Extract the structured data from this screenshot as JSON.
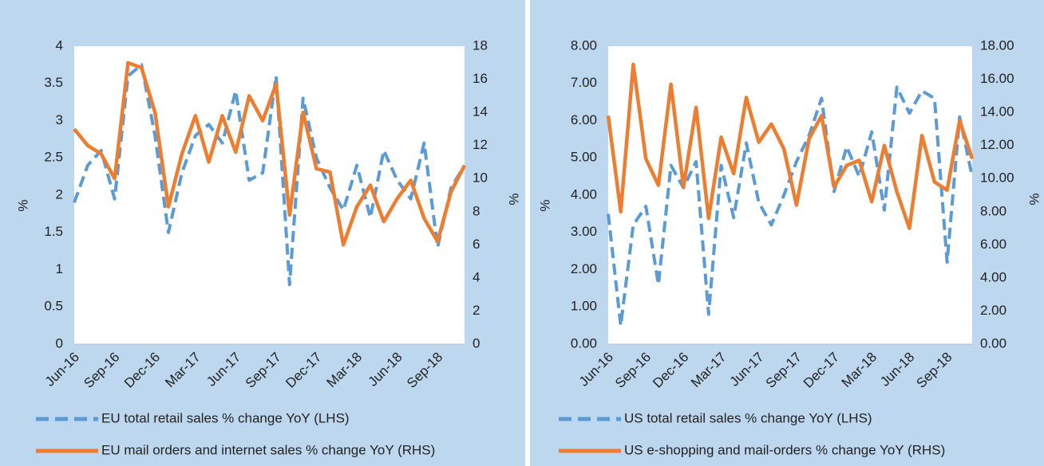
{
  "chart_data": [
    {
      "type": "line",
      "categories": [
        "Jun-16",
        null,
        null,
        "Sep-16",
        null,
        null,
        "Dec-16",
        null,
        null,
        "Mar-17",
        null,
        null,
        "Jun-17",
        null,
        null,
        "Sep-17",
        null,
        null,
        "Dec-17",
        null,
        null,
        "Mar-18",
        null,
        null,
        "Jun-18",
        null,
        null,
        "Sep-18",
        null,
        null
      ],
      "ylabel": "%",
      "y2label": "%",
      "ylim": [
        0,
        4
      ],
      "yticks": [
        0,
        0.5,
        1,
        1.5,
        2,
        2.5,
        3,
        3.5,
        4
      ],
      "y2lim": [
        0,
        18
      ],
      "y2ticks": [
        0,
        2,
        4,
        6,
        8,
        10,
        12,
        14,
        16,
        18
      ],
      "series": [
        {
          "name": "EU total retail sales % change YoY (LHS)",
          "color": "#5b9bd5",
          "line_style": "dashed",
          "values": [
            1.9,
            2.4,
            2.6,
            1.95,
            3.6,
            3.75,
            2.8,
            1.5,
            2.3,
            2.8,
            2.95,
            2.7,
            3.4,
            2.2,
            2.3,
            3.6,
            0.8,
            3.3,
            2.5,
            2.1,
            1.8,
            2.4,
            1.7,
            2.6,
            2.2,
            1.95,
            2.7,
            1.3,
            2.1,
            2.4
          ]
        },
        {
          "name": "EU mail orders and internet sales % change YoY (RHS)",
          "color": "#ed7d31",
          "line_style": "solid",
          "axis": "y2",
          "values": [
            13,
            12,
            11.5,
            10,
            17,
            16.7,
            14,
            8.3,
            11.5,
            13.8,
            11,
            13.8,
            11.6,
            15,
            13.5,
            15.7,
            7.8,
            14,
            10.6,
            10.4,
            6,
            8.3,
            9.6,
            7.4,
            8.8,
            9.9,
            7.6,
            6.2,
            9.2,
            10.8
          ]
        }
      ]
    },
    {
      "type": "line",
      "categories": [
        "Jun-16",
        null,
        null,
        "Sep-16",
        null,
        null,
        "Dec-16",
        null,
        null,
        "Mar-17",
        null,
        null,
        "Jun-17",
        null,
        null,
        "Sep-17",
        null,
        null,
        "Dec-17",
        null,
        null,
        "Mar-18",
        null,
        null,
        "Jun-18",
        null,
        null,
        "Sep-18",
        null,
        null
      ],
      "ylabel": "%",
      "y2label": "%",
      "ylim": [
        0,
        8
      ],
      "yticks": [
        {
          "value": 0,
          "label": "0.00"
        },
        {
          "value": 1,
          "label": "1.00"
        },
        {
          "value": 2,
          "label": "2.00"
        },
        {
          "value": 3,
          "label": "3.00"
        },
        {
          "value": 4,
          "label": "4.00"
        },
        {
          "value": 5,
          "label": "5.00"
        },
        {
          "value": 6,
          "label": "6.00"
        },
        {
          "value": 7,
          "label": "7.00"
        },
        {
          "value": 8,
          "label": "8.00"
        }
      ],
      "y2lim": [
        0,
        18
      ],
      "y2ticks": [
        {
          "value": 0,
          "label": "0.00"
        },
        {
          "value": 2,
          "label": "2.00"
        },
        {
          "value": 4,
          "label": "4.00"
        },
        {
          "value": 6,
          "label": "6.00"
        },
        {
          "value": 8,
          "label": "8.00"
        },
        {
          "value": 10,
          "label": "10.00"
        },
        {
          "value": 12,
          "label": "12.00"
        },
        {
          "value": 14,
          "label": "14.00"
        },
        {
          "value": 16,
          "label": "16.00"
        },
        {
          "value": 18,
          "label": "18.00"
        }
      ],
      "series": [
        {
          "name": "US total retail sales % change YoY (LHS)",
          "color": "#5b9bd5",
          "line_style": "dashed",
          "values": [
            3.5,
            0.5,
            3.2,
            3.7,
            1.6,
            4.8,
            4.2,
            4.9,
            0.8,
            4.8,
            3.4,
            5.4,
            3.8,
            3.2,
            4.0,
            4.9,
            5.6,
            6.6,
            4.1,
            5.3,
            4.5,
            5.7,
            3.6,
            6.9,
            6.2,
            6.8,
            6.6,
            2.2,
            6.1,
            4.5
          ]
        },
        {
          "name": "US e-shopping and mail-orders % change YoY (RHS)",
          "color": "#ed7d31",
          "line_style": "solid",
          "axis": "y2",
          "values": [
            13.8,
            8,
            16.9,
            11.2,
            9.6,
            15.7,
            9.5,
            14.3,
            7.6,
            12.5,
            10.3,
            14.9,
            12.2,
            13.3,
            11.8,
            8.4,
            12.4,
            13.8,
            9.5,
            10.8,
            11.1,
            8.6,
            12,
            9.2,
            7,
            12.6,
            9.8,
            9.3,
            13.5,
            11.2
          ]
        }
      ]
    }
  ]
}
